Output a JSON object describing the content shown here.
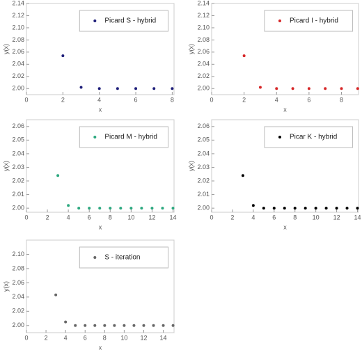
{
  "chart_data": [
    {
      "type": "scatter",
      "x_label": "x",
      "y_label": "y(x)",
      "x": [
        2,
        3,
        4,
        5,
        6,
        7,
        8
      ],
      "series": [
        {
          "name": "Picard S -  hybrid",
          "color": "#1f1f7a",
          "values": [
            2.054,
            2.002,
            2.0,
            2.0,
            2.0,
            2.0,
            2.0
          ]
        }
      ],
      "xlim": [
        0,
        8.1
      ],
      "xticks": [
        0,
        2,
        4,
        6,
        8
      ],
      "ylim": [
        1.99,
        2.14
      ],
      "yticks": [
        {
          "value": 2.0,
          "label": "2.00"
        },
        2.02,
        2.04,
        2.06,
        2.08,
        {
          "value": 2.1,
          "label": "2.10"
        },
        2.12,
        2.14
      ]
    },
    {
      "type": "scatter",
      "x_label": "x",
      "y_label": "y(x)",
      "x": [
        2,
        3,
        4,
        5,
        6,
        7,
        8,
        9
      ],
      "series": [
        {
          "name": "Picard I -  hybrid",
          "color": "#d62728",
          "values": [
            2.054,
            2.002,
            2.0,
            2.0,
            2.0,
            2.0,
            2.0,
            2.0
          ]
        }
      ],
      "xlim": [
        0,
        9.05
      ],
      "xticks": [
        0,
        2,
        4,
        6,
        8
      ],
      "ylim": [
        1.99,
        2.14
      ],
      "yticks": [
        {
          "value": 2.0,
          "label": "2.00"
        },
        2.02,
        2.04,
        2.06,
        2.08,
        {
          "value": 2.1,
          "label": "2.10"
        },
        2.12,
        2.14
      ]
    },
    {
      "type": "scatter",
      "x_label": "x",
      "y_label": "y(x)",
      "x": [
        3,
        4,
        5,
        6,
        7,
        8,
        9,
        10,
        11,
        12,
        13,
        14
      ],
      "series": [
        {
          "name": "Picard M -  hybrid",
          "color": "#2ca87f",
          "values": [
            2.024,
            2.002,
            2.0,
            2.0,
            2.0,
            2.0,
            2.0,
            2.0,
            2.0,
            2.0,
            2.0,
            2.0
          ]
        }
      ],
      "xlim": [
        0,
        14.1
      ],
      "xticks": [
        0,
        2,
        4,
        6,
        8,
        10,
        12,
        14
      ],
      "ylim": [
        1.997,
        2.065
      ],
      "yticks": [
        {
          "value": 2.0,
          "label": "2.00"
        },
        2.01,
        2.02,
        2.03,
        2.04,
        2.05,
        2.06
      ]
    },
    {
      "type": "scatter",
      "x_label": "x",
      "y_label": "y(x)",
      "x": [
        3,
        4,
        5,
        6,
        7,
        8,
        9,
        10,
        11,
        12,
        13,
        14
      ],
      "series": [
        {
          "name": "Picar K -  hybrid",
          "color": "#000000",
          "values": [
            2.024,
            2.002,
            2.0,
            2.0,
            2.0,
            2.0,
            2.0,
            2.0,
            2.0,
            2.0,
            2.0,
            2.0
          ]
        }
      ],
      "xlim": [
        0,
        14.1
      ],
      "xticks": [
        0,
        2,
        4,
        6,
        8,
        10,
        12,
        14
      ],
      "ylim": [
        1.997,
        2.065
      ],
      "yticks": [
        {
          "value": 2.0,
          "label": "2.00"
        },
        2.01,
        2.02,
        2.03,
        2.04,
        2.05,
        2.06
      ]
    },
    {
      "type": "scatter",
      "x_label": "x",
      "y_label": "y(x)",
      "x": [
        3,
        4,
        5,
        6,
        7,
        8,
        9,
        10,
        11,
        12,
        13,
        14,
        15
      ],
      "series": [
        {
          "name": "S -  iteration",
          "color": "#666666",
          "values": [
            2.043,
            2.005,
            2.0,
            2.0,
            2.0,
            2.0,
            2.0,
            2.0,
            2.0,
            2.0,
            2.0,
            2.0,
            2.0
          ]
        }
      ],
      "xlim": [
        0,
        15.1
      ],
      "xticks": [
        0,
        2,
        4,
        6,
        8,
        10,
        12,
        14
      ],
      "ylim": [
        1.99,
        2.12
      ],
      "yticks": [
        {
          "value": 2.0,
          "label": "2.00"
        },
        2.02,
        2.04,
        2.06,
        2.08,
        {
          "value": 2.1,
          "label": "2.10"
        }
      ]
    }
  ]
}
